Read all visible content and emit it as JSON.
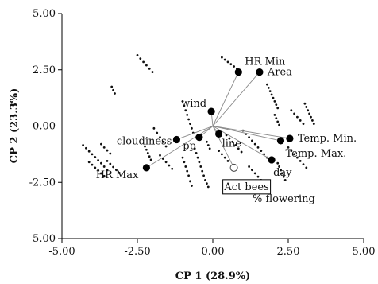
{
  "chart_data": {
    "type": "scatter",
    "subtype": "biplot",
    "title": "",
    "xlabel": "CP 1 (28.9%)",
    "ylabel": "CP 2 (23.3%)",
    "xlim": [
      -5.0,
      5.0
    ],
    "ylim": [
      -5.0,
      5.0
    ],
    "xticks": [
      "-5.00",
      "-2.50",
      "0.00",
      "2.50",
      "5.00"
    ],
    "yticks": [
      "-5.00",
      "-2.50",
      "0.00",
      "2.50",
      "5.00"
    ],
    "grid": false,
    "legend": "none",
    "origin": [
      0.0,
      0.0
    ],
    "variables": [
      {
        "label": "HR Min",
        "x": 0.85,
        "y": 2.4
      },
      {
        "label": "Area",
        "x": 1.55,
        "y": 2.4
      },
      {
        "label": "wind",
        "x": -0.05,
        "y": 0.65
      },
      {
        "label": "cloudiness",
        "x": -1.2,
        "y": -0.6
      },
      {
        "label": "pp",
        "x": -0.45,
        "y": -0.5
      },
      {
        "label": "line",
        "x": 0.2,
        "y": -0.35
      },
      {
        "label": "Temp. Min.",
        "x": 2.55,
        "y": -0.55
      },
      {
        "label": "Temp. Max.",
        "x": 2.25,
        "y": -0.65
      },
      {
        "label": "day",
        "x": 1.95,
        "y": -1.5
      },
      {
        "label": "HR Max",
        "x": -2.2,
        "y": -1.85
      },
      {
        "label": "Act bees",
        "x": 0.7,
        "y": -1.85,
        "style": "open",
        "boxed": true
      },
      {
        "label": "% flowering",
        "x": null,
        "y": null
      }
    ],
    "observations": [
      [
        -4.3,
        -0.85
      ],
      [
        -4.2,
        -0.98
      ],
      [
        -4.1,
        -1.12
      ],
      [
        -4.0,
        -1.25
      ],
      [
        -3.9,
        -1.38
      ],
      [
        -3.8,
        -1.52
      ],
      [
        -3.7,
        -1.65
      ],
      [
        -3.6,
        -1.8
      ],
      [
        -3.5,
        -1.95
      ],
      [
        -3.4,
        -2.1
      ],
      [
        -4.1,
        -1.6
      ],
      [
        -4.0,
        -1.72
      ],
      [
        -3.9,
        -1.85
      ],
      [
        -3.8,
        -1.97
      ],
      [
        -3.7,
        -2.1
      ],
      [
        -3.6,
        -2.22
      ],
      [
        -3.7,
        -0.8
      ],
      [
        -3.6,
        -0.95
      ],
      [
        -3.5,
        -1.08
      ],
      [
        -3.4,
        -1.22
      ],
      [
        -3.5,
        -1.55
      ],
      [
        -3.4,
        -1.68
      ],
      [
        -3.3,
        -1.82
      ],
      [
        -3.2,
        -1.95
      ],
      [
        -3.1,
        -2.08
      ],
      [
        -3.35,
        1.75
      ],
      [
        -3.3,
        1.6
      ],
      [
        -3.25,
        1.45
      ],
      [
        -2.5,
        3.15
      ],
      [
        -2.4,
        3.0
      ],
      [
        -2.3,
        2.85
      ],
      [
        -2.2,
        2.7
      ],
      [
        -2.1,
        2.55
      ],
      [
        -2.0,
        2.4
      ],
      [
        -2.25,
        -0.9
      ],
      [
        -2.2,
        -1.05
      ],
      [
        -2.15,
        -1.2
      ],
      [
        -2.1,
        -1.35
      ],
      [
        -2.05,
        -1.5
      ],
      [
        -1.95,
        -0.1
      ],
      [
        -1.85,
        -0.3
      ],
      [
        -1.75,
        -0.5
      ],
      [
        -1.65,
        -0.7
      ],
      [
        -1.55,
        -0.9
      ],
      [
        -1.75,
        -1.3
      ],
      [
        -1.65,
        -1.45
      ],
      [
        -1.55,
        -1.6
      ],
      [
        -1.45,
        -1.75
      ],
      [
        -1.35,
        -1.9
      ],
      [
        -1.0,
        1.1
      ],
      [
        -0.95,
        0.9
      ],
      [
        -0.9,
        0.7
      ],
      [
        -0.85,
        0.5
      ],
      [
        -0.8,
        0.3
      ],
      [
        -0.75,
        0.1
      ],
      [
        -0.7,
        -0.1
      ],
      [
        -0.65,
        -0.3
      ],
      [
        -1.0,
        -1.4
      ],
      [
        -0.95,
        -1.6
      ],
      [
        -0.9,
        -1.8
      ],
      [
        -0.85,
        -2.0
      ],
      [
        -0.8,
        -2.2
      ],
      [
        -0.75,
        -2.45
      ],
      [
        -0.7,
        -2.65
      ],
      [
        -0.6,
        -1.0
      ],
      [
        -0.55,
        -1.2
      ],
      [
        -0.5,
        -1.4
      ],
      [
        -0.45,
        -1.6
      ],
      [
        -0.4,
        -1.8
      ],
      [
        -0.35,
        -2.0
      ],
      [
        -0.3,
        -2.2
      ],
      [
        -0.25,
        -2.4
      ],
      [
        -0.2,
        -2.55
      ],
      [
        -0.15,
        -2.7
      ],
      [
        -0.2,
        -0.7
      ],
      [
        -0.15,
        -0.85
      ],
      [
        -0.1,
        -1.0
      ],
      [
        0.3,
        3.05
      ],
      [
        0.4,
        2.95
      ],
      [
        0.5,
        2.85
      ],
      [
        0.6,
        2.75
      ],
      [
        0.7,
        2.65
      ],
      [
        0.8,
        2.55
      ],
      [
        0.45,
        -0.4
      ],
      [
        0.55,
        -0.55
      ],
      [
        0.65,
        -0.7
      ],
      [
        0.75,
        -0.85
      ],
      [
        0.85,
        -1.0
      ],
      [
        0.95,
        -1.15
      ],
      [
        0.2,
        -1.1
      ],
      [
        0.3,
        -1.25
      ],
      [
        0.4,
        -1.4
      ],
      [
        0.5,
        -1.55
      ],
      [
        1.0,
        -0.2
      ],
      [
        1.1,
        -0.35
      ],
      [
        1.2,
        -0.5
      ],
      [
        1.3,
        -0.65
      ],
      [
        1.4,
        -0.8
      ],
      [
        1.5,
        -0.95
      ],
      [
        1.6,
        -1.1
      ],
      [
        1.7,
        -1.25
      ],
      [
        1.8,
        -1.4
      ],
      [
        1.2,
        -1.8
      ],
      [
        1.3,
        -1.95
      ],
      [
        1.4,
        -2.1
      ],
      [
        1.5,
        -2.25
      ],
      [
        1.6,
        -2.4
      ],
      [
        1.8,
        1.85
      ],
      [
        1.85,
        1.7
      ],
      [
        1.9,
        1.55
      ],
      [
        1.95,
        1.4
      ],
      [
        2.0,
        1.25
      ],
      [
        2.05,
        1.1
      ],
      [
        2.1,
        0.95
      ],
      [
        2.15,
        0.8
      ],
      [
        2.05,
        0.5
      ],
      [
        2.1,
        0.35
      ],
      [
        2.15,
        0.2
      ],
      [
        2.2,
        0.05
      ],
      [
        2.15,
        -1.65
      ],
      [
        2.2,
        -1.8
      ],
      [
        2.25,
        -1.95
      ],
      [
        2.3,
        -2.1
      ],
      [
        2.35,
        -2.25
      ],
      [
        2.4,
        -2.4
      ],
      [
        2.5,
        -0.95
      ],
      [
        2.6,
        -1.1
      ],
      [
        2.7,
        -1.25
      ],
      [
        2.8,
        -1.4
      ],
      [
        2.9,
        -1.55
      ],
      [
        3.0,
        -1.7
      ],
      [
        3.1,
        -1.85
      ],
      [
        2.6,
        0.7
      ],
      [
        2.7,
        0.55
      ],
      [
        2.8,
        0.4
      ],
      [
        2.9,
        0.25
      ],
      [
        3.0,
        0.1
      ],
      [
        3.05,
        1.0
      ],
      [
        3.1,
        0.85
      ],
      [
        3.15,
        0.7
      ],
      [
        3.2,
        0.55
      ],
      [
        3.25,
        0.4
      ],
      [
        3.3,
        0.25
      ],
      [
        3.35,
        0.1
      ]
    ]
  }
}
